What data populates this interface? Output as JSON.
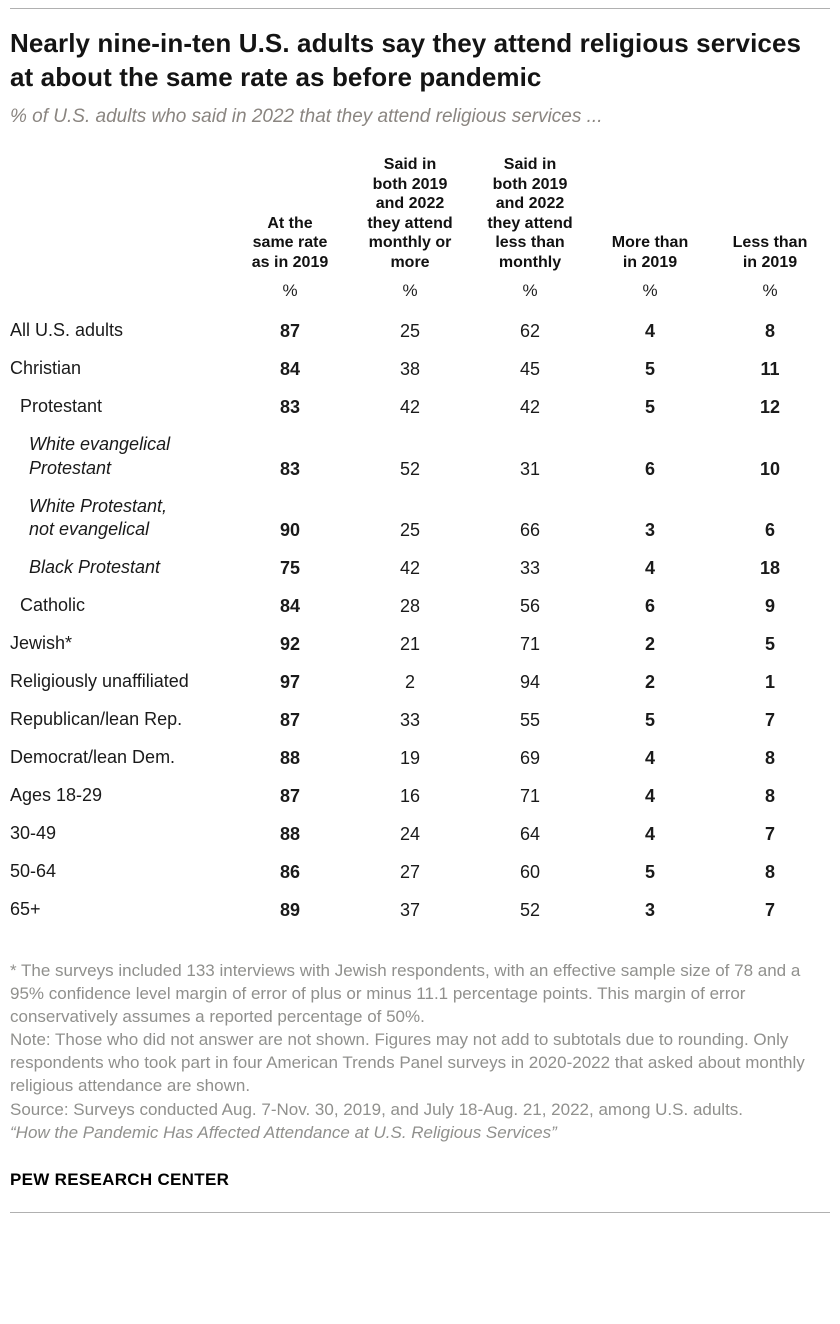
{
  "chart_data": {
    "type": "table",
    "title": "Nearly nine-in-ten U.S. adults say they attend religious services at about the same rate as before pandemic",
    "subtitle": "% of U.S. adults who said in 2022 that they attend religious services ...",
    "columns": [
      "At the\nsame rate\nas in 2019",
      "Said in\nboth 2019\nand 2022\nthey attend\nmonthly or\nmore",
      "Said in\nboth 2019\nand 2022\nthey attend\nless than\nmonthly",
      "More than\nin 2019",
      "Less than\nin 2019"
    ],
    "unit_row": [
      "%",
      "%",
      "%",
      "%",
      "%"
    ],
    "rows": [
      {
        "label": "All U.S. adults",
        "indent": 0,
        "italic": false,
        "group_start": false,
        "values": [
          87,
          25,
          62,
          4,
          8
        ]
      },
      {
        "label": "Christian",
        "indent": 0,
        "italic": false,
        "group_start": true,
        "values": [
          84,
          38,
          45,
          5,
          11
        ]
      },
      {
        "label": "Protestant",
        "indent": 1,
        "italic": false,
        "group_start": false,
        "values": [
          83,
          42,
          42,
          5,
          12
        ]
      },
      {
        "label": "White evangelical\nProtestant",
        "indent": 2,
        "italic": true,
        "group_start": false,
        "values": [
          83,
          52,
          31,
          6,
          10
        ]
      },
      {
        "label": "White Protestant,\nnot evangelical",
        "indent": 2,
        "italic": true,
        "group_start": false,
        "values": [
          90,
          25,
          66,
          3,
          6
        ]
      },
      {
        "label": "Black Protestant",
        "indent": 2,
        "italic": true,
        "group_start": false,
        "values": [
          75,
          42,
          33,
          4,
          18
        ]
      },
      {
        "label": "Catholic",
        "indent": 1,
        "italic": false,
        "group_start": false,
        "values": [
          84,
          28,
          56,
          6,
          9
        ]
      },
      {
        "label": "Jewish*",
        "indent": 0,
        "italic": false,
        "group_start": false,
        "values": [
          92,
          21,
          71,
          2,
          5
        ]
      },
      {
        "label": "Religiously unaffiliated",
        "indent": 0,
        "italic": false,
        "group_start": false,
        "values": [
          97,
          2,
          94,
          2,
          1
        ]
      },
      {
        "label": "Republican/lean Rep.",
        "indent": 0,
        "italic": false,
        "group_start": true,
        "values": [
          87,
          33,
          55,
          5,
          7
        ]
      },
      {
        "label": "Democrat/lean Dem.",
        "indent": 0,
        "italic": false,
        "group_start": false,
        "values": [
          88,
          19,
          69,
          4,
          8
        ]
      },
      {
        "label": "Ages 18-29",
        "indent": 0,
        "italic": false,
        "group_start": true,
        "values": [
          87,
          16,
          71,
          4,
          8
        ]
      },
      {
        "label": "30-49",
        "indent": 0,
        "italic": false,
        "group_start": false,
        "values": [
          88,
          24,
          64,
          4,
          7
        ]
      },
      {
        "label": "50-64",
        "indent": 0,
        "italic": false,
        "group_start": false,
        "values": [
          86,
          27,
          60,
          5,
          8
        ]
      },
      {
        "label": "65+",
        "indent": 0,
        "italic": false,
        "group_start": false,
        "values": [
          89,
          37,
          52,
          3,
          7
        ]
      }
    ],
    "layout": {
      "bold_value_columns": [
        0,
        3,
        4
      ],
      "grid": "off",
      "legend": "none"
    }
  },
  "footnotes": [
    "* The surveys included 133 interviews with Jewish respondents, with an effective sample size of 78 and a 95% confidence level margin of error of plus or minus 11.1 percentage points. This margin of error conservatively assumes a reported percentage of 50%.",
    "Note: Those who did not answer are not shown. Figures may not add to subtotals due to rounding. Only respondents who took part in four American Trends Panel surveys in 2020-2022 that asked about monthly religious attendance are shown.",
    "Source: Surveys conducted Aug. 7-Nov. 30, 2019, and July 18-Aug. 21, 2022, among U.S. adults.",
    "“How the Pandemic Has Affected Attendance at U.S. Religious Services”"
  ],
  "branding": "PEW RESEARCH CENTER",
  "colors": {
    "title": "#141414",
    "subtitle": "#8a8580",
    "footnote": "#90908d",
    "rule": "#b0b0b0"
  }
}
